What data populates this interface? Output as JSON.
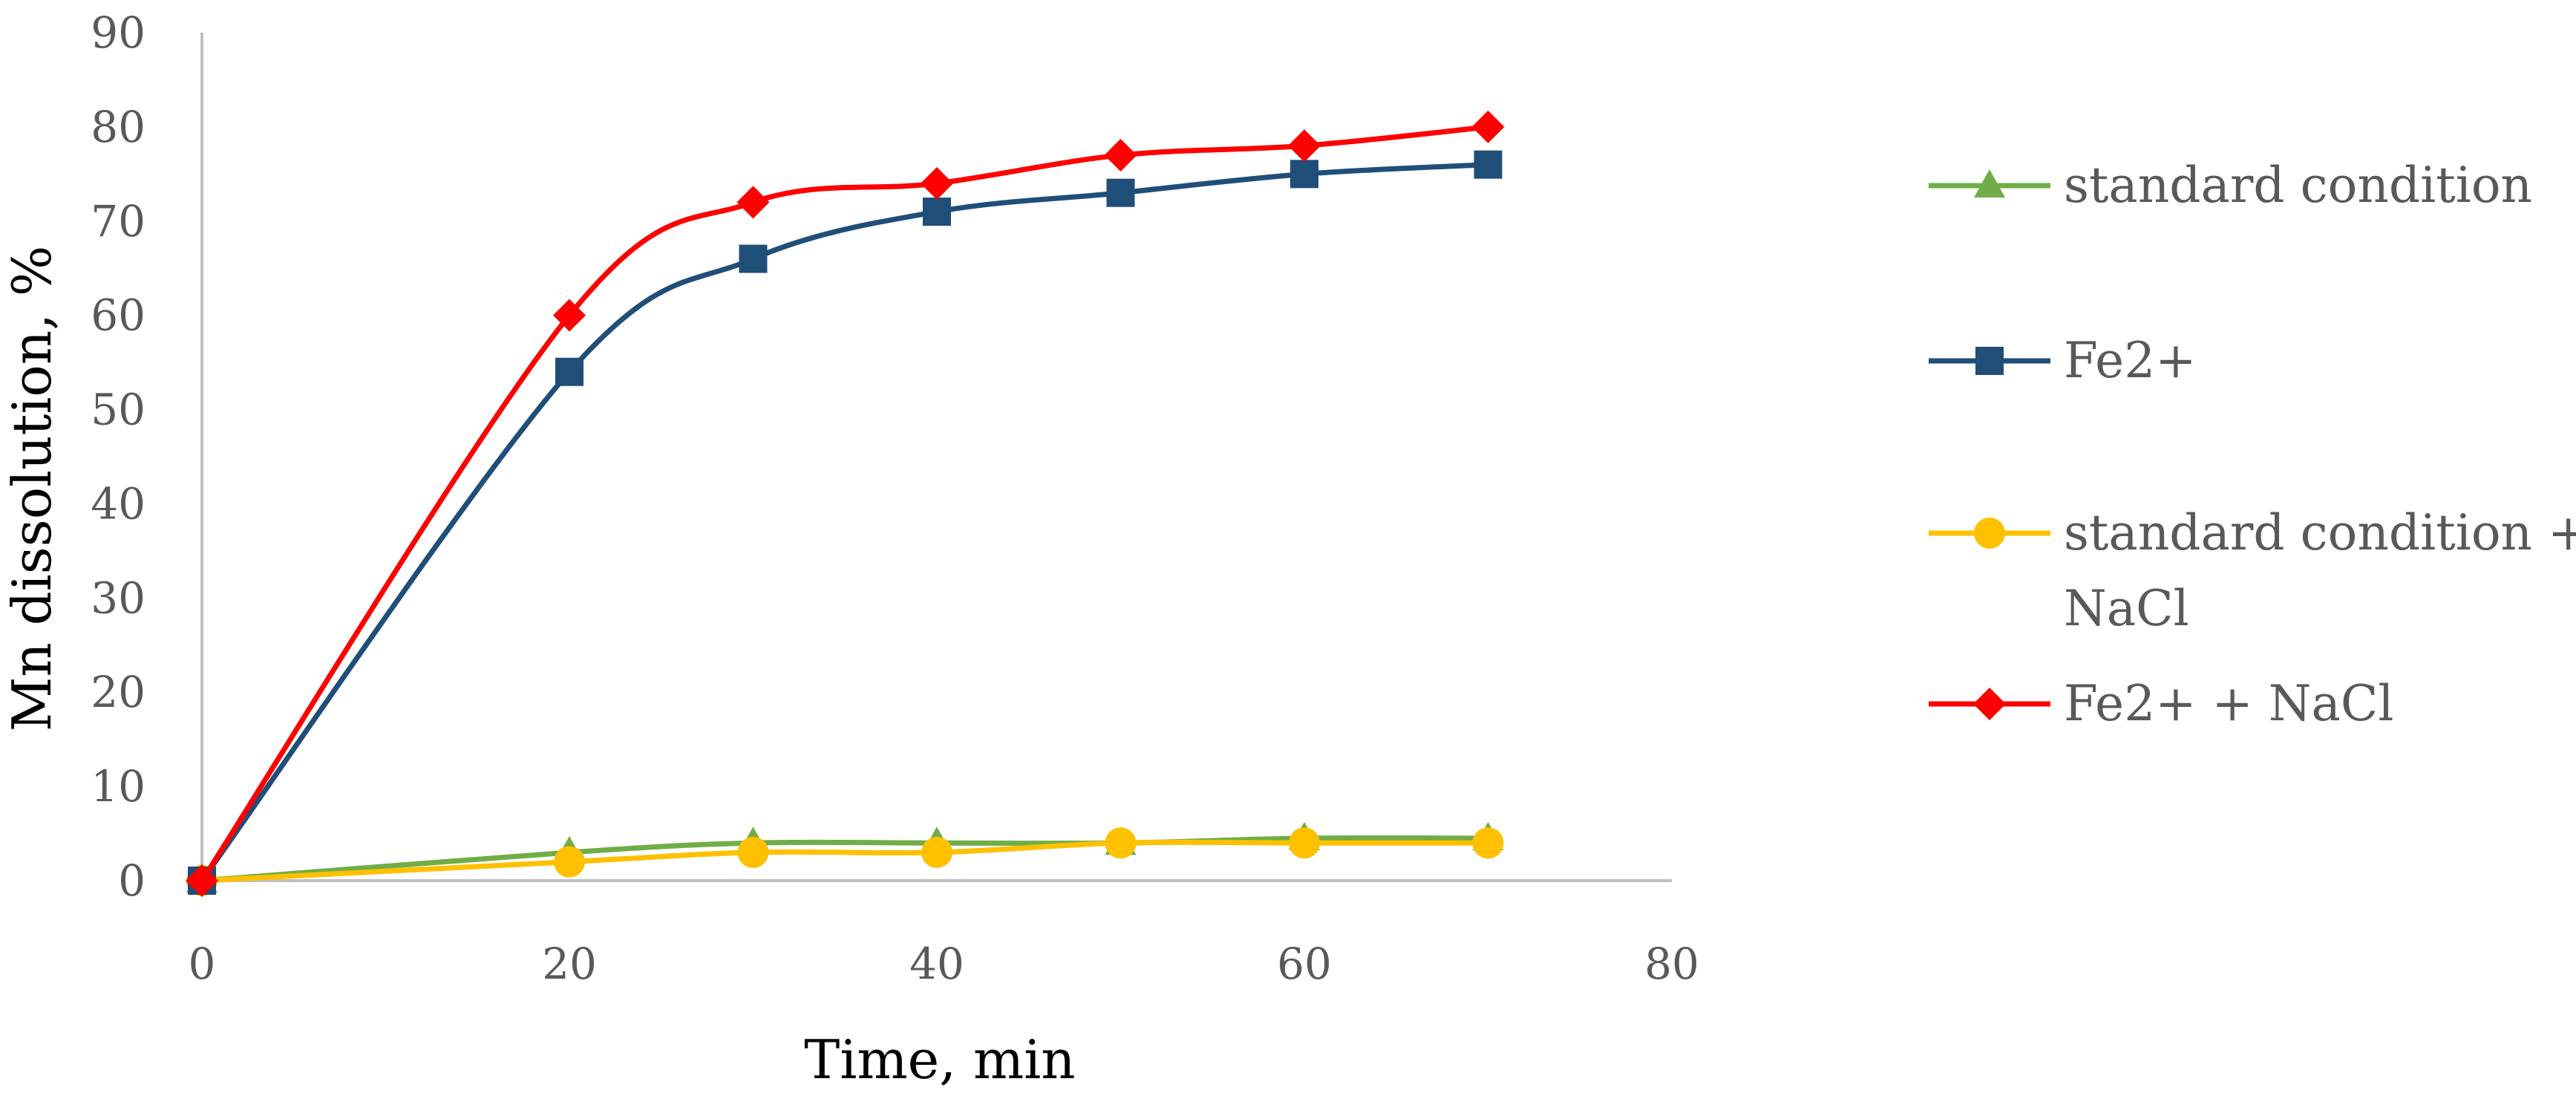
{
  "chart_data": {
    "type": "line",
    "title": "",
    "xlabel": "Time, min",
    "ylabel": "Mn dissolution, %",
    "xlim": [
      0,
      80
    ],
    "ylim": [
      0,
      90
    ],
    "x_ticks": [
      0,
      20,
      40,
      60,
      80
    ],
    "y_ticks": [
      0,
      10,
      20,
      30,
      40,
      50,
      60,
      70,
      80,
      90
    ],
    "grid": false,
    "legend_position": "right",
    "series": [
      {
        "name": "standard condition",
        "color": "#70AD47",
        "marker": "triangle",
        "x": [
          0,
          20,
          30,
          40,
          50,
          60,
          70
        ],
        "y": [
          0,
          3,
          4,
          4,
          4,
          4.5,
          4.5
        ]
      },
      {
        "name": "Fe2+",
        "color": "#1F4E79",
        "marker": "square",
        "x": [
          0,
          20,
          30,
          40,
          50,
          60,
          70
        ],
        "y": [
          0,
          54,
          66,
          71,
          73,
          75,
          76
        ]
      },
      {
        "name": "standard condition + NaCl",
        "color": "#FFC000",
        "marker": "circle",
        "x": [
          0,
          20,
          30,
          40,
          50,
          60,
          70
        ],
        "y": [
          0,
          2,
          3,
          3,
          4,
          4,
          4
        ]
      },
      {
        "name": "Fe2+ + NaCl",
        "color": "#FF0000",
        "marker": "diamond",
        "x": [
          0,
          20,
          30,
          40,
          50,
          60,
          70
        ],
        "y": [
          0,
          60,
          72,
          74,
          77,
          78,
          80
        ]
      }
    ],
    "draw_order": [
      0,
      2,
      1,
      3
    ]
  }
}
